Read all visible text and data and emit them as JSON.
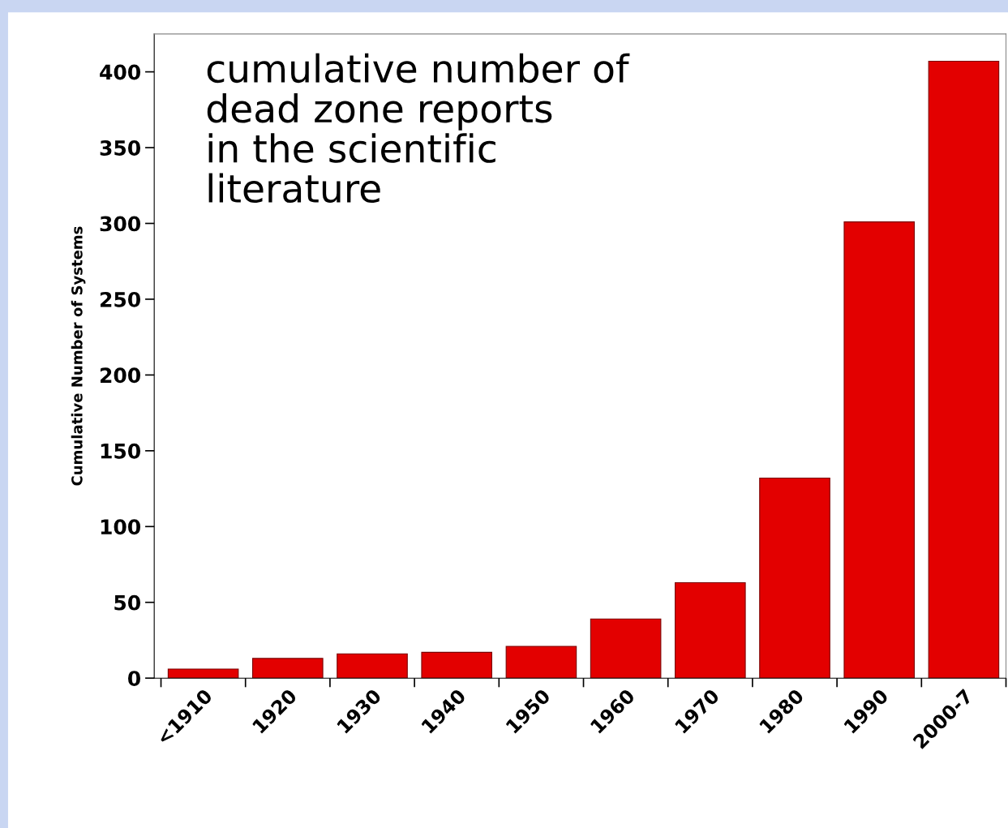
{
  "chart_data": {
    "type": "bar",
    "categories": [
      "<1910",
      "1920",
      "1930",
      "1940",
      "1950",
      "1960",
      "1970",
      "1980",
      "1990",
      "2000-7"
    ],
    "values": [
      6,
      13,
      16,
      17,
      21,
      39,
      63,
      132,
      301,
      407
    ],
    "color": "#e30000",
    "ylabel": "Cumulative Number of Systems",
    "ylim": [
      0,
      425
    ],
    "yticks": [
      0,
      50,
      100,
      150,
      200,
      250,
      300,
      350,
      400
    ],
    "annotations": [
      "cumulative number of\ndead zone reports\nin the scientific\nliterature"
    ],
    "grid": false,
    "legend": false
  }
}
